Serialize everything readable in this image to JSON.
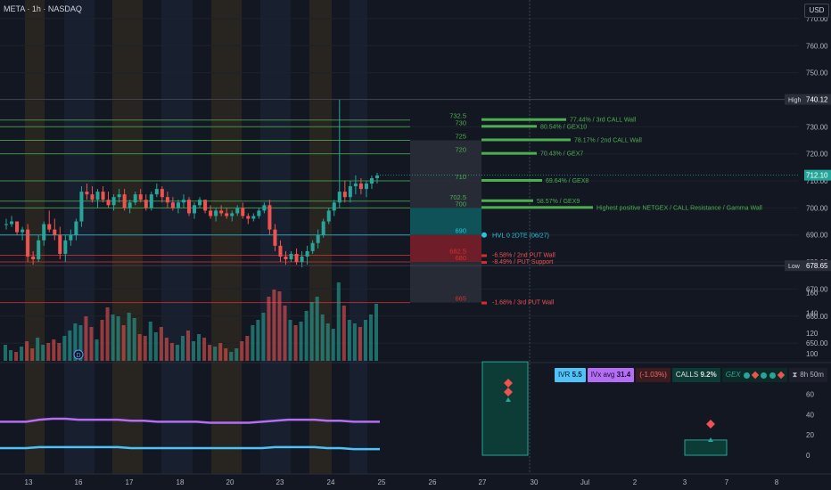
{
  "header": {
    "title": "META · 1h · NASDAQ",
    "currency": "USD"
  },
  "colors": {
    "background": "#131722",
    "up": "#26a69a",
    "down": "#ef5350",
    "call": "#4caf50",
    "put": "#d32f2f",
    "hvl": "#26c6da",
    "ivr": "#4fc3f7",
    "ivx": "#b46ef5"
  },
  "price_axis": {
    "ticks": [
      "770.00",
      "760.00",
      "750.00",
      "740.00",
      "730.00",
      "720.00",
      "710.00",
      "700.00",
      "690.00",
      "680.00",
      "670.00",
      "660.00",
      "650.00"
    ],
    "high_label": "High",
    "high_value": "740.12",
    "low_label": "Low",
    "low_value": "678.65",
    "last_value": "712.10"
  },
  "osc_axis": {
    "ticks": [
      "160",
      "140",
      "120",
      "100",
      "80",
      "60",
      "40",
      "20",
      "0"
    ]
  },
  "time_axis": {
    "labels": [
      "13",
      "16",
      "17",
      "18",
      "20",
      "23",
      "24",
      "25",
      "26",
      "27",
      "30",
      "Jul",
      "2",
      "3",
      "7",
      "8"
    ]
  },
  "levels": [
    {
      "value": "732.5",
      "note": "77.44% / 3rd CALL Wall",
      "kind": "call"
    },
    {
      "value": "730",
      "note": "80.54% / GEX10",
      "kind": "call"
    },
    {
      "value": "725",
      "note": "78.17% / 2nd CALL Wall",
      "kind": "call"
    },
    {
      "value": "720",
      "note": "70.43% / GEX7",
      "kind": "call"
    },
    {
      "value": "710",
      "note": "69.64% / GEX8",
      "kind": "call"
    },
    {
      "value": "702.5",
      "note": "58.57% / GEX9",
      "kind": "call"
    },
    {
      "value": "700",
      "note": "Highest positive NETGEX / CALL Resistance / Gamma Wall",
      "kind": "call"
    },
    {
      "value": "690",
      "note": "HVL",
      "kind": "hvl"
    },
    {
      "value": "682.5",
      "note": "-6.58% / 2nd PUT Wall",
      "kind": "put"
    },
    {
      "value": "680",
      "note": "-8.49% / PUT Support",
      "kind": "put"
    },
    {
      "value": "665",
      "note": "-1.68% / 3rd PUT Wall",
      "kind": "put"
    }
  ],
  "hvl": {
    "label": "HVL",
    "detail": "0 2DTE (06/27)"
  },
  "marker": "D",
  "stats": {
    "ivr_label": "IVR",
    "ivr_value": "5.5",
    "ivx_label": "IVx avg",
    "ivx_value": "31.4",
    "change": "(-1.03%)",
    "calls_label": "CALLS",
    "calls_value": "9.2%",
    "gex_label": "GEX",
    "time": "8h 50m",
    "time_icon": "hourglass-icon"
  },
  "chart_data": {
    "type": "candlestick",
    "y_range": [
      640,
      775
    ],
    "candles": [
      [
        694,
        696,
        692,
        694
      ],
      [
        694,
        697,
        693,
        695
      ],
      [
        695,
        695,
        690,
        691
      ],
      [
        691,
        693,
        688,
        692
      ],
      [
        692,
        694,
        680,
        682
      ],
      [
        682,
        684,
        679,
        681
      ],
      [
        681,
        690,
        680,
        688
      ],
      [
        688,
        695,
        686,
        694
      ],
      [
        694,
        699,
        691,
        692
      ],
      [
        692,
        696,
        688,
        690
      ],
      [
        690,
        693,
        681,
        683
      ],
      [
        683,
        690,
        680,
        688
      ],
      [
        688,
        692,
        686,
        690
      ],
      [
        690,
        696,
        688,
        695
      ],
      [
        695,
        708,
        693,
        706
      ],
      [
        706,
        709,
        703,
        705
      ],
      [
        705,
        708,
        702,
        703
      ],
      [
        703,
        707,
        700,
        706
      ],
      [
        706,
        708,
        702,
        703
      ],
      [
        703,
        706,
        700,
        701
      ],
      [
        701,
        705,
        699,
        704
      ],
      [
        704,
        707,
        702,
        705
      ],
      [
        705,
        707,
        699,
        700
      ],
      [
        700,
        703,
        698,
        702
      ],
      [
        702,
        706,
        701,
        705
      ],
      [
        705,
        707,
        702,
        703
      ],
      [
        703,
        705,
        699,
        700
      ],
      [
        700,
        706,
        699,
        705
      ],
      [
        705,
        709,
        704,
        707
      ],
      [
        707,
        708,
        702,
        704
      ],
      [
        704,
        706,
        700,
        702
      ],
      [
        702,
        704,
        699,
        700
      ],
      [
        700,
        703,
        698,
        702
      ],
      [
        702,
        705,
        700,
        703
      ],
      [
        703,
        704,
        697,
        698
      ],
      [
        698,
        702,
        696,
        701
      ],
      [
        701,
        704,
        700,
        703
      ],
      [
        703,
        703,
        698,
        699
      ],
      [
        699,
        701,
        696,
        697
      ],
      [
        697,
        700,
        695,
        699
      ],
      [
        699,
        701,
        697,
        698
      ],
      [
        698,
        700,
        696,
        697
      ],
      [
        697,
        699,
        695,
        698
      ],
      [
        698,
        701,
        697,
        700
      ],
      [
        700,
        702,
        696,
        697
      ],
      [
        697,
        698,
        694,
        696
      ],
      [
        696,
        698,
        695,
        697
      ],
      [
        697,
        700,
        696,
        699
      ],
      [
        699,
        702,
        698,
        701
      ],
      [
        701,
        703,
        690,
        692
      ],
      [
        692,
        694,
        684,
        686
      ],
      [
        686,
        688,
        680,
        682
      ],
      [
        682,
        684,
        679,
        681
      ],
      [
        681,
        684,
        680,
        683
      ],
      [
        683,
        685,
        679,
        680
      ],
      [
        680,
        684,
        678,
        682
      ],
      [
        682,
        686,
        679,
        684
      ],
      [
        684,
        688,
        683,
        687
      ],
      [
        687,
        692,
        685,
        690
      ],
      [
        690,
        696,
        689,
        695
      ],
      [
        695,
        700,
        694,
        699
      ],
      [
        699,
        703,
        697,
        702
      ],
      [
        702,
        740,
        700,
        706
      ],
      [
        706,
        710,
        702,
        704
      ],
      [
        704,
        710,
        702,
        708
      ],
      [
        708,
        712,
        705,
        709
      ],
      [
        709,
        711,
        705,
        707
      ],
      [
        707,
        710,
        704,
        709
      ],
      [
        709,
        712,
        707,
        711
      ],
      [
        711,
        713,
        709,
        712
      ]
    ],
    "volumes": [
      18,
      12,
      10,
      16,
      22,
      14,
      26,
      18,
      20,
      24,
      20,
      28,
      34,
      42,
      40,
      50,
      38,
      24,
      46,
      60,
      52,
      50,
      40,
      54,
      48,
      30,
      28,
      44,
      32,
      38,
      26,
      20,
      18,
      28,
      34,
      22,
      30,
      26,
      18,
      16,
      20,
      14,
      10,
      14,
      22,
      28,
      40,
      46,
      54,
      72,
      80,
      78,
      62,
      46,
      40,
      44,
      56,
      66,
      72,
      52,
      42,
      36,
      88,
      62,
      46,
      42,
      38,
      46,
      52,
      64
    ],
    "oscillator": {
      "ivx_line": [
        33,
        33,
        33,
        35,
        36,
        36,
        35,
        35,
        35,
        35,
        34,
        34,
        33,
        33,
        33,
        33,
        32,
        32,
        32,
        32,
        33,
        34,
        35,
        35,
        35,
        34,
        34,
        33,
        33,
        33
      ],
      "ivr_line": [
        7,
        7,
        7,
        8,
        8,
        8,
        8,
        8,
        8,
        8,
        7,
        7,
        7,
        7,
        7,
        7,
        7,
        7,
        7,
        7,
        7,
        8,
        8,
        8,
        8,
        7,
        7,
        6,
        6,
        6
      ],
      "bars": [
        {
          "at": "27",
          "value": 92
        },
        {
          "at": "3",
          "value": 15
        }
      ]
    }
  }
}
